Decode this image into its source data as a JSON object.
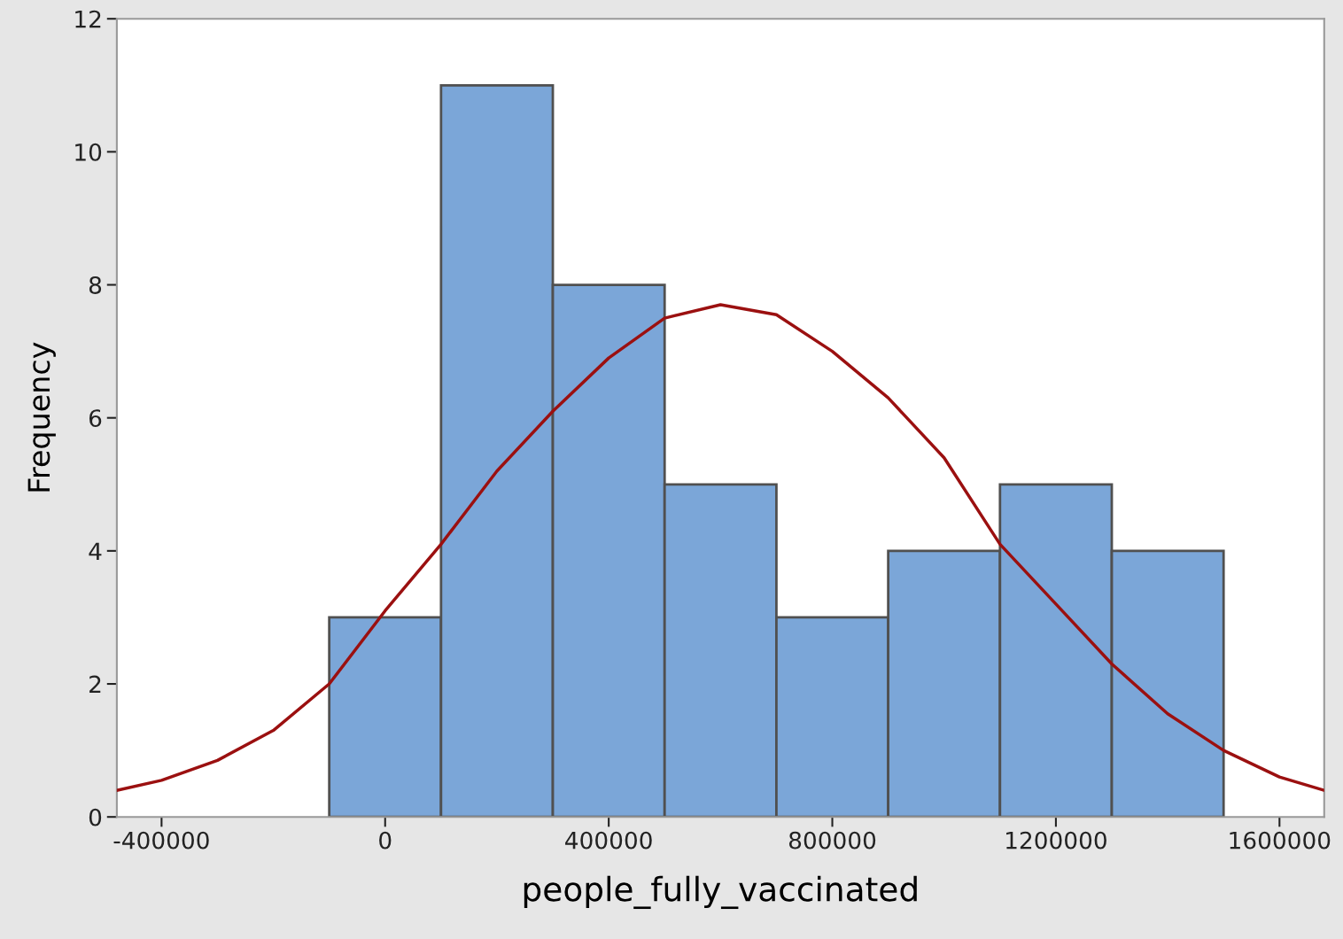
{
  "chart_data": {
    "type": "histogram",
    "xlabel": "people_fully_vaccinated",
    "ylabel": "Frequency",
    "xlim": [
      -480000,
      1680000
    ],
    "xticks": [
      -400000,
      0,
      400000,
      800000,
      1200000,
      1600000
    ],
    "ylim": [
      0,
      12
    ],
    "yticks": [
      0,
      2,
      4,
      6,
      8,
      10,
      12
    ],
    "grid": false,
    "legend": false,
    "series": [
      {
        "color": "#7ba6d8",
        "bins": [
          -100000,
          100000,
          300000,
          500000,
          700000,
          900000,
          1100000,
          1300000,
          1500000
        ],
        "values": [
          3,
          11,
          8,
          5,
          3,
          4,
          5,
          4
        ]
      },
      {
        "type": "line",
        "color": "#9b1010",
        "x": [
          -480000,
          -400000,
          -300000,
          -200000,
          -100000,
          0,
          100000,
          200000,
          300000,
          400000,
          500000,
          600000,
          700000,
          800000,
          900000,
          1000000,
          1100000,
          1200000,
          1300000,
          1400000,
          1500000,
          1600000,
          1680000
        ],
        "values": [
          0.4,
          0.55,
          0.85,
          1.3,
          2.0,
          3.1,
          4.1,
          5.2,
          6.1,
          6.9,
          7.5,
          7.7,
          7.55,
          7.0,
          6.3,
          5.4,
          4.1,
          3.2,
          2.3,
          1.55,
          1.0,
          0.6,
          0.4
        ]
      }
    ]
  }
}
